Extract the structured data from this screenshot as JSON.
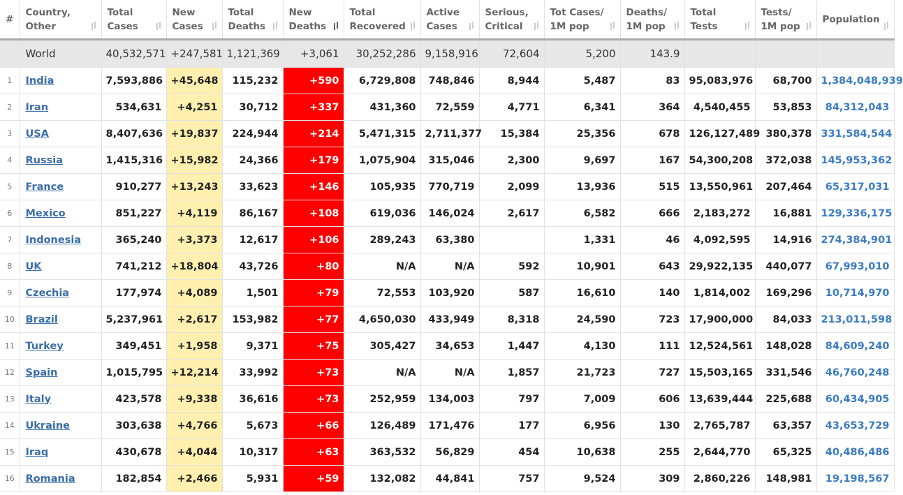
{
  "table": {
    "headers": [
      [
        "#"
      ],
      [
        "Country,",
        "Other"
      ],
      [
        "Total",
        "Cases"
      ],
      [
        "New",
        "Cases"
      ],
      [
        "Total",
        "Deaths"
      ],
      [
        "New",
        "Deaths"
      ],
      [
        "Total",
        "Recovered"
      ],
      [
        "Active",
        "Cases"
      ],
      [
        "Serious,",
        "Critical"
      ],
      [
        "Tot Cases/",
        "1M pop"
      ],
      [
        "Deaths/",
        "1M pop"
      ],
      [
        "Total",
        "Tests"
      ],
      [
        "Tests/",
        "1M pop"
      ],
      [
        "Population"
      ]
    ],
    "world": {
      "label": "World",
      "values": [
        "40,532,571",
        "+247,581",
        "1,121,369",
        "+3,061",
        "30,252,286",
        "9,158,916",
        "72,604",
        "5,200",
        "143.9",
        null,
        null,
        null
      ]
    },
    "rows": [
      {
        "index": "1",
        "country": "India",
        "values": [
          "7,593,886",
          "+45,648",
          "115,232",
          "+590",
          "6,729,808",
          "748,846",
          "8,944",
          "5,487",
          "83",
          "95,083,976",
          "68,700",
          "1,384,048,939"
        ]
      },
      {
        "index": "2",
        "country": "Iran",
        "values": [
          "534,631",
          "+4,251",
          "30,712",
          "+337",
          "431,360",
          "72,559",
          "4,771",
          "6,341",
          "364",
          "4,540,455",
          "53,853",
          "84,312,043"
        ]
      },
      {
        "index": "3",
        "country": "USA",
        "values": [
          "8,407,636",
          "+19,837",
          "224,944",
          "+214",
          "5,471,315",
          "2,711,377",
          "15,384",
          "25,356",
          "678",
          "126,127,489",
          "380,378",
          "331,584,544"
        ]
      },
      {
        "index": "4",
        "country": "Russia",
        "values": [
          "1,415,316",
          "+15,982",
          "24,366",
          "+179",
          "1,075,904",
          "315,046",
          "2,300",
          "9,697",
          "167",
          "54,300,208",
          "372,038",
          "145,953,362"
        ]
      },
      {
        "index": "5",
        "country": "France",
        "values": [
          "910,277",
          "+13,243",
          "33,623",
          "+146",
          "105,935",
          "770,719",
          "2,099",
          "13,936",
          "515",
          "13,550,961",
          "207,464",
          "65,317,031"
        ]
      },
      {
        "index": "6",
        "country": "Mexico",
        "values": [
          "851,227",
          "+4,119",
          "86,167",
          "+108",
          "619,036",
          "146,024",
          "2,617",
          "6,582",
          "666",
          "2,183,272",
          "16,881",
          "129,336,175"
        ]
      },
      {
        "index": "7",
        "country": "Indonesia",
        "values": [
          "365,240",
          "+3,373",
          "12,617",
          "+106",
          "289,243",
          "63,380",
          null,
          "1,331",
          "46",
          "4,092,595",
          "14,916",
          "274,384,901"
        ]
      },
      {
        "index": "8",
        "country": "UK",
        "values": [
          "741,212",
          "+18,804",
          "43,726",
          "+80",
          "N/A",
          "N/A",
          "592",
          "10,901",
          "643",
          "29,922,135",
          "440,077",
          "67,993,010"
        ]
      },
      {
        "index": "9",
        "country": "Czechia",
        "values": [
          "177,974",
          "+4,089",
          "1,501",
          "+79",
          "72,553",
          "103,920",
          "587",
          "16,610",
          "140",
          "1,814,002",
          "169,296",
          "10,714,970"
        ]
      },
      {
        "index": "10",
        "country": "Brazil",
        "values": [
          "5,237,961",
          "+2,617",
          "153,982",
          "+77",
          "4,650,030",
          "433,949",
          "8,318",
          "24,590",
          "723",
          "17,900,000",
          "84,033",
          "213,011,598"
        ]
      },
      {
        "index": "11",
        "country": "Turkey",
        "values": [
          "349,451",
          "+1,958",
          "9,371",
          "+75",
          "305,427",
          "34,653",
          "1,447",
          "4,130",
          "111",
          "12,524,561",
          "148,028",
          "84,609,240"
        ]
      },
      {
        "index": "12",
        "country": "Spain",
        "values": [
          "1,015,795",
          "+12,214",
          "33,992",
          "+73",
          "N/A",
          "N/A",
          "1,857",
          "21,723",
          "727",
          "15,503,165",
          "331,546",
          "46,760,248"
        ]
      },
      {
        "index": "13",
        "country": "Italy",
        "values": [
          "423,578",
          "+9,338",
          "36,616",
          "+73",
          "252,959",
          "134,003",
          "797",
          "7,009",
          "606",
          "13,639,444",
          "225,688",
          "60,434,905"
        ]
      },
      {
        "index": "14",
        "country": "Ukraine",
        "values": [
          "303,638",
          "+4,766",
          "5,673",
          "+66",
          "126,489",
          "171,476",
          "177",
          "6,956",
          "130",
          "2,765,787",
          "63,357",
          "43,653,729"
        ]
      },
      {
        "index": "15",
        "country": "Iraq",
        "values": [
          "430,678",
          "+4,044",
          "10,317",
          "+63",
          "363,532",
          "56,829",
          "454",
          "10,638",
          "255",
          "2,644,770",
          "65,325",
          "40,486,486"
        ]
      },
      {
        "index": "16",
        "country": "Romania",
        "values": [
          "182,854",
          "+2,466",
          "5,931",
          "+59",
          "132,082",
          "44,841",
          "757",
          "9,524",
          "309",
          "2,860,226",
          "148,981",
          "19,198,567"
        ]
      }
    ]
  }
}
